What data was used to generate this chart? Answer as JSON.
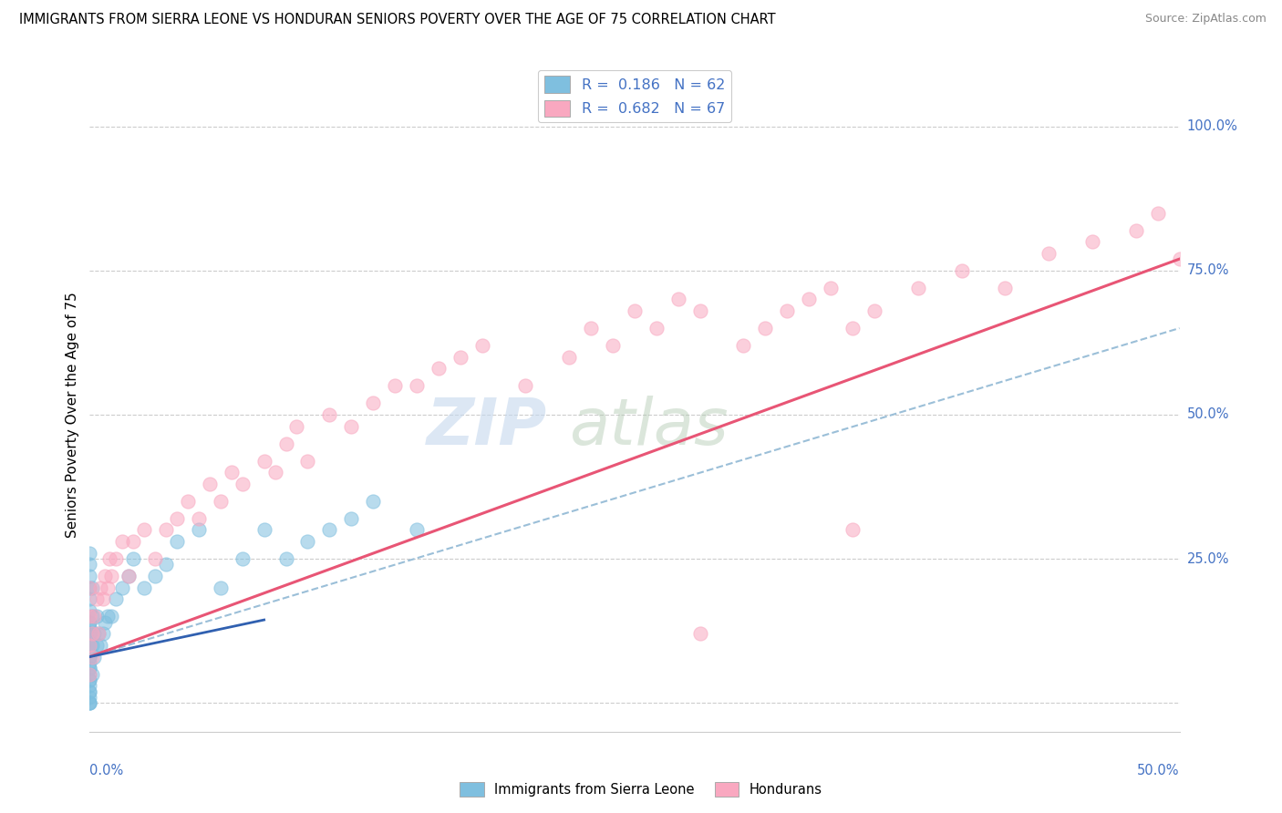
{
  "title": "IMMIGRANTS FROM SIERRA LEONE VS HONDURAN SENIORS POVERTY OVER THE AGE OF 75 CORRELATION CHART",
  "source": "Source: ZipAtlas.com",
  "ylabel": "Seniors Poverty Over the Age of 75",
  "legend1_label": "R =  0.186   N = 62",
  "legend2_label": "R =  0.682   N = 67",
  "legend_bottom1": "Immigrants from Sierra Leone",
  "legend_bottom2": "Hondurans",
  "color_blue": "#7fbfdf",
  "color_pink": "#f9a8c0",
  "color_blue_line": "#9bbfd8",
  "color_pink_line": "#e85575",
  "label_color": "#4472c4",
  "grid_color": "#cccccc",
  "xlim": [
    0.0,
    0.5
  ],
  "ylim": [
    -0.05,
    1.05
  ],
  "figsize": [
    14.06,
    8.92
  ],
  "dpi": 100,
  "sierra_leone_x": [
    0.0,
    0.0,
    0.0,
    0.0,
    0.0,
    0.0,
    0.0,
    0.0,
    0.0,
    0.0,
    0.0,
    0.0,
    0.0,
    0.0,
    0.0,
    0.0,
    0.0,
    0.0,
    0.0,
    0.0,
    0.0,
    0.0,
    0.0,
    0.0,
    0.0,
    0.0,
    0.0,
    0.0,
    0.0,
    0.0,
    0.001,
    0.001,
    0.001,
    0.001,
    0.002,
    0.002,
    0.003,
    0.003,
    0.004,
    0.005,
    0.006,
    0.007,
    0.008,
    0.01,
    0.012,
    0.015,
    0.018,
    0.02,
    0.025,
    0.03,
    0.035,
    0.04,
    0.05,
    0.06,
    0.07,
    0.08,
    0.09,
    0.1,
    0.11,
    0.12,
    0.13,
    0.15
  ],
  "sierra_leone_y": [
    0.0,
    0.01,
    0.02,
    0.03,
    0.04,
    0.05,
    0.06,
    0.07,
    0.08,
    0.09,
    0.1,
    0.11,
    0.12,
    0.13,
    0.14,
    0.0,
    0.02,
    0.04,
    0.06,
    0.08,
    0.1,
    0.12,
    0.14,
    0.16,
    0.18,
    0.2,
    0.22,
    0.24,
    0.26,
    0.0,
    0.05,
    0.1,
    0.15,
    0.2,
    0.08,
    0.12,
    0.1,
    0.15,
    0.12,
    0.1,
    0.12,
    0.14,
    0.15,
    0.15,
    0.18,
    0.2,
    0.22,
    0.25,
    0.2,
    0.22,
    0.24,
    0.28,
    0.3,
    0.2,
    0.25,
    0.3,
    0.25,
    0.28,
    0.3,
    0.32,
    0.35,
    0.3
  ],
  "honduran_x": [
    0.0,
    0.0,
    0.0,
    0.0,
    0.001,
    0.001,
    0.002,
    0.003,
    0.004,
    0.005,
    0.006,
    0.007,
    0.008,
    0.009,
    0.01,
    0.012,
    0.015,
    0.018,
    0.02,
    0.025,
    0.03,
    0.035,
    0.04,
    0.045,
    0.05,
    0.055,
    0.06,
    0.065,
    0.07,
    0.08,
    0.085,
    0.09,
    0.095,
    0.1,
    0.11,
    0.12,
    0.13,
    0.14,
    0.15,
    0.16,
    0.17,
    0.18,
    0.2,
    0.22,
    0.23,
    0.24,
    0.25,
    0.26,
    0.27,
    0.28,
    0.3,
    0.31,
    0.32,
    0.33,
    0.34,
    0.35,
    0.36,
    0.38,
    0.4,
    0.42,
    0.44,
    0.46,
    0.48,
    0.49,
    0.5,
    0.35,
    0.28
  ],
  "honduran_y": [
    0.05,
    0.1,
    0.15,
    0.2,
    0.08,
    0.12,
    0.15,
    0.18,
    0.12,
    0.2,
    0.18,
    0.22,
    0.2,
    0.25,
    0.22,
    0.25,
    0.28,
    0.22,
    0.28,
    0.3,
    0.25,
    0.3,
    0.32,
    0.35,
    0.32,
    0.38,
    0.35,
    0.4,
    0.38,
    0.42,
    0.4,
    0.45,
    0.48,
    0.42,
    0.5,
    0.48,
    0.52,
    0.55,
    0.55,
    0.58,
    0.6,
    0.62,
    0.55,
    0.6,
    0.65,
    0.62,
    0.68,
    0.65,
    0.7,
    0.68,
    0.62,
    0.65,
    0.68,
    0.7,
    0.72,
    0.65,
    0.68,
    0.72,
    0.75,
    0.72,
    0.78,
    0.8,
    0.82,
    0.85,
    0.77,
    0.3,
    0.12
  ]
}
